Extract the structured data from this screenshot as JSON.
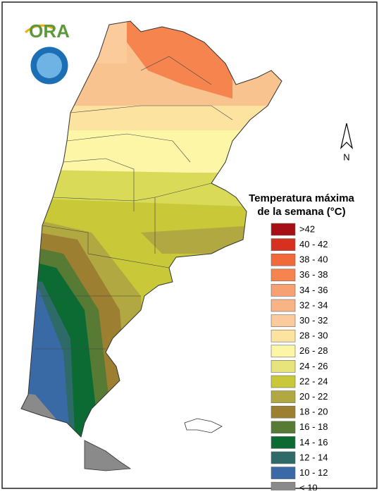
{
  "logo": {
    "text": "ORA"
  },
  "compass": {
    "label": "N"
  },
  "legend": {
    "title": [
      "Temperatura máxima",
      "de la semana (°C)"
    ],
    "items": [
      {
        "label": ">42",
        "color": "#a50f15"
      },
      {
        "label": "40 - 42",
        "color": "#d7301f"
      },
      {
        "label": "38 - 40",
        "color": "#f26a3a"
      },
      {
        "label": "36 - 38",
        "color": "#f6844f"
      },
      {
        "label": "34 - 36",
        "color": "#f7a173"
      },
      {
        "label": "32 - 34",
        "color": "#f9b486"
      },
      {
        "label": "30 - 32",
        "color": "#fbcb9c"
      },
      {
        "label": "28 - 30",
        "color": "#fde3a0"
      },
      {
        "label": "26 - 28",
        "color": "#fdf6a6"
      },
      {
        "label": "24 - 26",
        "color": "#e6e47a"
      },
      {
        "label": "22 - 24",
        "color": "#c9c838"
      },
      {
        "label": "20 - 22",
        "color": "#b2a842"
      },
      {
        "label": "18 - 20",
        "color": "#9c7f30"
      },
      {
        "label": "16 - 18",
        "color": "#577a34"
      },
      {
        "label": "14 - 16",
        "color": "#0b6b33"
      },
      {
        "label": "12 - 14",
        "color": "#2e6a68"
      },
      {
        "label": "10 - 12",
        "color": "#3a6aa6"
      },
      {
        "label": "< 10",
        "color": "#8a8a8a"
      }
    ]
  }
}
